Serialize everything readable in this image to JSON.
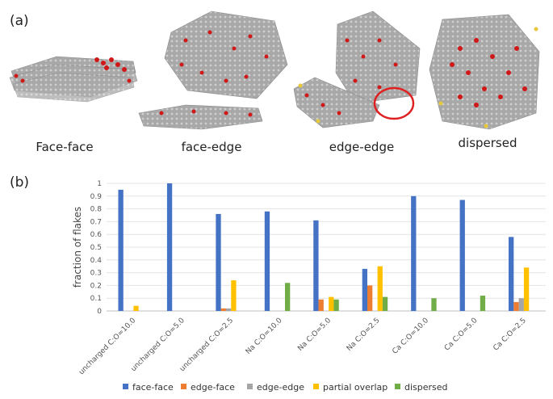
{
  "panels": {
    "a_label": "(a)",
    "b_label": "(b)"
  },
  "snapshots": [
    {
      "label": "Face-face"
    },
    {
      "label": "face-edge"
    },
    {
      "label": "edge-edge"
    },
    {
      "label": "dispersed"
    }
  ],
  "colors": {
    "carbon": "#9a9a9a",
    "oxygen": "#d01818",
    "ion": "#e6c83a",
    "edge": "#c878c8",
    "circle": "#e02020"
  },
  "chart_data": {
    "type": "bar",
    "title": "",
    "xlabel": "",
    "ylabel": "fraction of flakes",
    "ylim": [
      0,
      1
    ],
    "yticks": [
      "0",
      "0.1",
      "0.2",
      "0.3",
      "0.4",
      "0.5",
      "0.6",
      "0.7",
      "0.8",
      "0.9",
      "1"
    ],
    "grid": true,
    "legend_position": "bottom",
    "categories": [
      "uncharged C:O=10.0",
      "uncharged C:O=5.0",
      "uncharged C:O=2.5",
      "Na C:O=10.0",
      "Na C:O=5.0",
      "Na C:O=2.5",
      "Ca C:O=10.0",
      "Ca C:O=5.0",
      "Ca C:O=2.5"
    ],
    "series": [
      {
        "name": "face-face",
        "color": "#4472c4",
        "values": [
          0.95,
          1.0,
          0.76,
          0.78,
          0.71,
          0.33,
          0.9,
          0.87,
          0.58
        ]
      },
      {
        "name": "edge-face",
        "color": "#ed7d31",
        "values": [
          0,
          0,
          0.02,
          0,
          0.09,
          0.2,
          0,
          0,
          0.07
        ]
      },
      {
        "name": "edge-edge",
        "color": "#a5a5a5",
        "values": [
          0,
          0,
          0.02,
          0,
          0,
          0,
          0,
          0,
          0.1
        ]
      },
      {
        "name": "partial overlap",
        "color": "#ffc000",
        "values": [
          0.04,
          0,
          0.24,
          0,
          0.11,
          0.35,
          0,
          0,
          0.34
        ]
      },
      {
        "name": "dispersed",
        "color": "#70ad47",
        "values": [
          0,
          0,
          0,
          0.22,
          0.09,
          0.11,
          0.1,
          0.12,
          0
        ]
      }
    ]
  }
}
